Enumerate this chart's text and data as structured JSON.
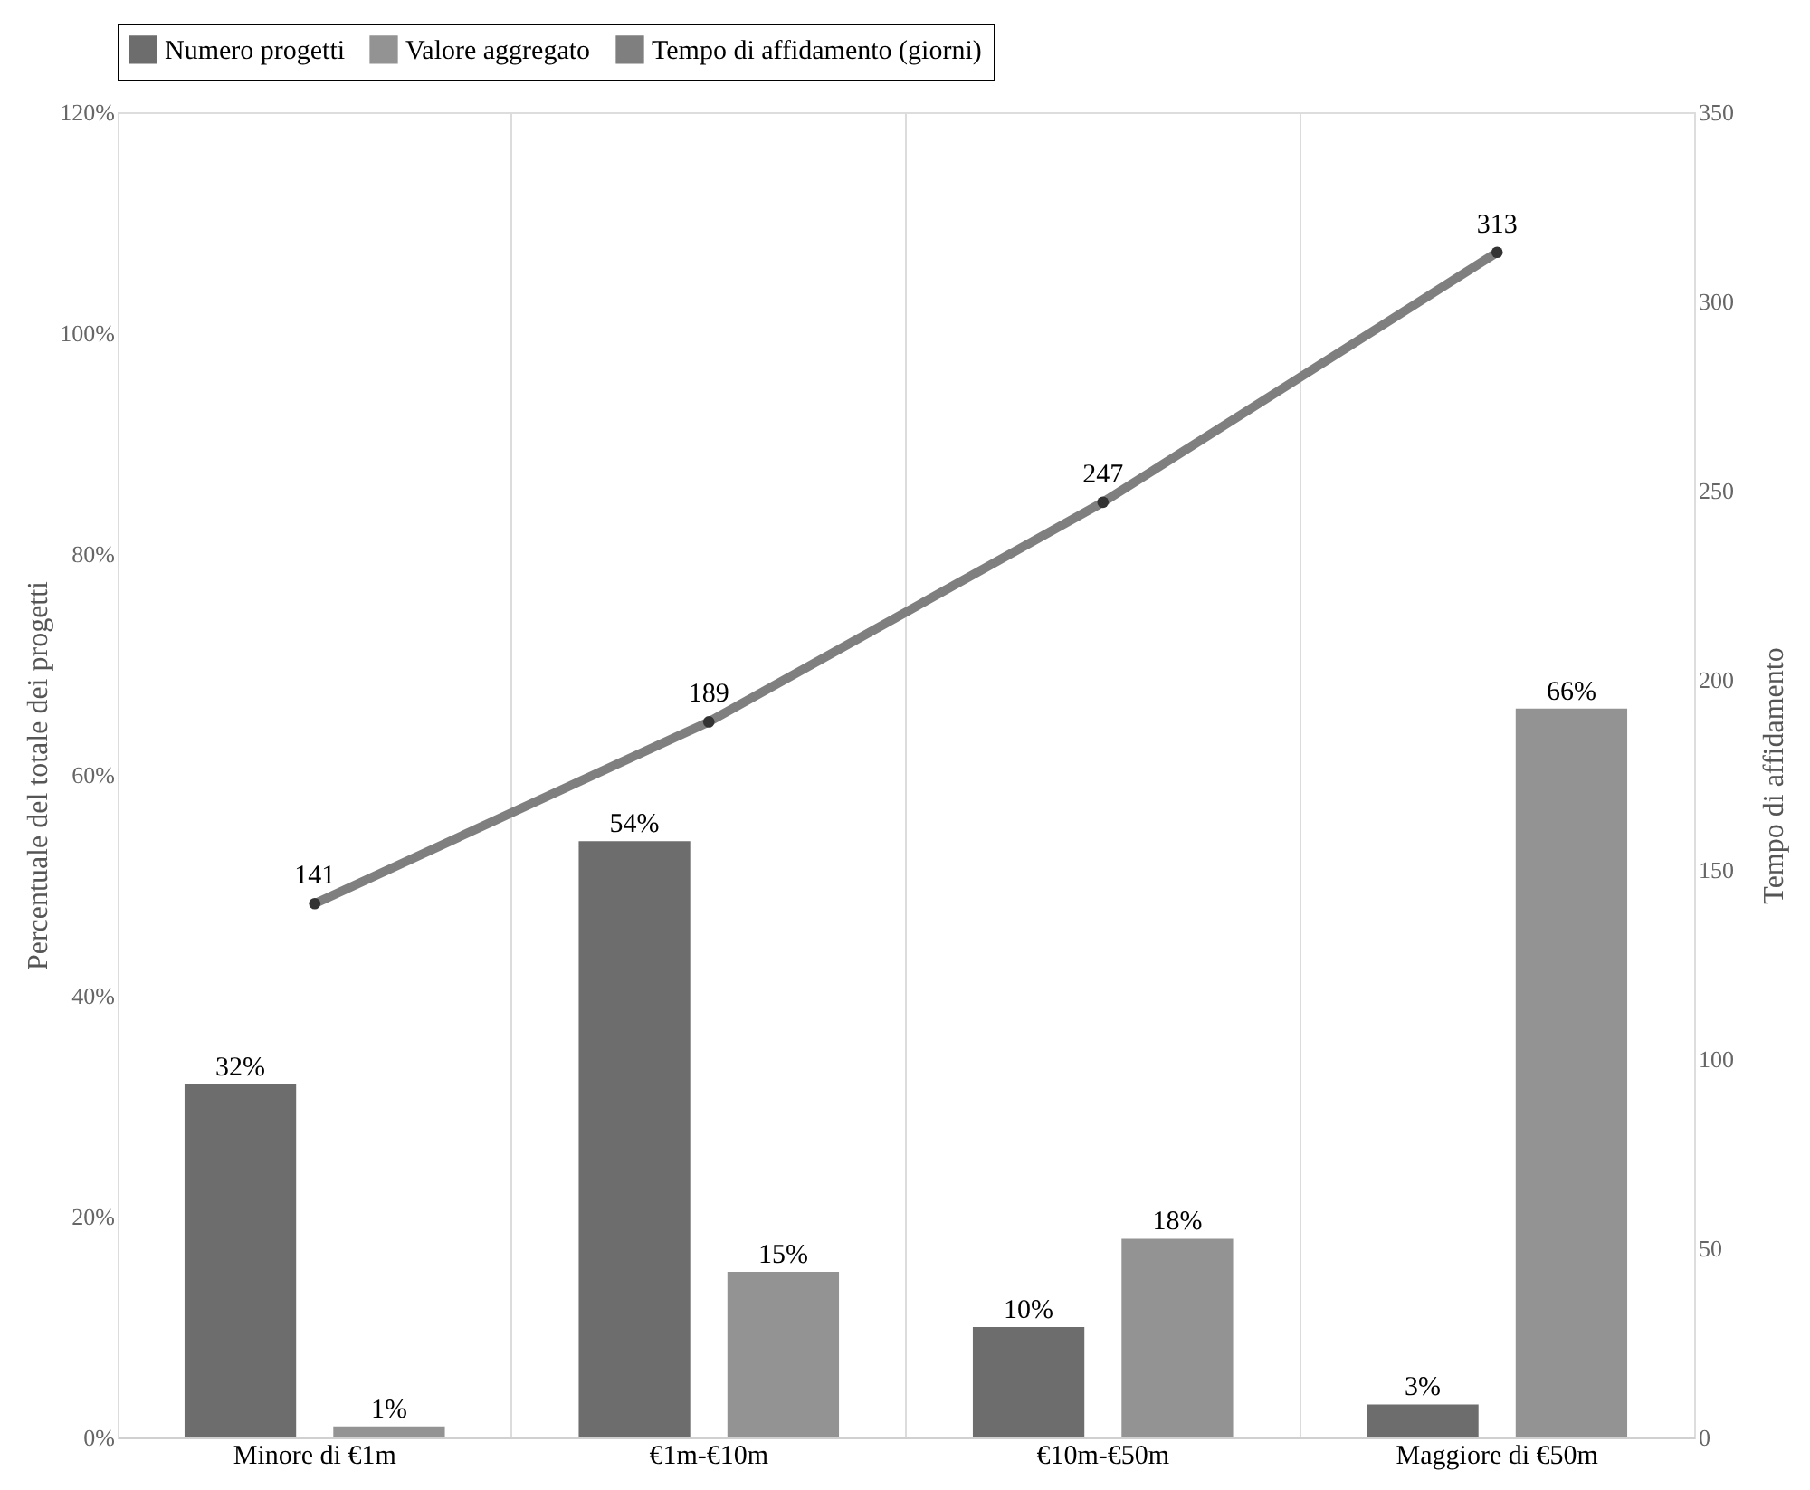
{
  "chart_data": {
    "type": "bar",
    "categories": [
      "Minore di €1m",
      "€1m-€10m",
      "€10m-€50m",
      "Maggiore di €50m"
    ],
    "ylabel": "Percentuale del totale dei progetti",
    "y2label": "Tempo di affidamento",
    "ylim": [
      0,
      120
    ],
    "yticks": [
      {
        "value": 0,
        "label": "0%"
      },
      {
        "value": 20,
        "label": "20%"
      },
      {
        "value": 40,
        "label": "40%"
      },
      {
        "value": 60,
        "label": "60%"
      },
      {
        "value": 80,
        "label": "80%"
      },
      {
        "value": 100,
        "label": "100%"
      },
      {
        "value": 120,
        "label": "120%"
      }
    ],
    "y2lim": [
      0,
      350
    ],
    "y2ticks": [
      0,
      50,
      100,
      150,
      200,
      250,
      300,
      350
    ],
    "series": [
      {
        "name": "Numero progetti",
        "color": "#6d6d6d",
        "values": [
          32,
          54,
          10,
          3
        ],
        "value_labels": [
          "32%",
          "54%",
          "10%",
          "3%"
        ]
      },
      {
        "name": "Valore aggregato",
        "color": "#939393",
        "values": [
          1,
          15,
          18,
          66
        ],
        "value_labels": [
          "1%",
          "15%",
          "18%",
          "66%"
        ]
      },
      {
        "name": "Tempo di affidamento (giorni)",
        "type": "line",
        "axis": "y2",
        "color": "#7f7f7f",
        "values": [
          141,
          189,
          247,
          313
        ],
        "value_labels": [
          "141",
          "189",
          "247",
          "313"
        ]
      }
    ],
    "marker": "circle",
    "line_style": "solid",
    "grid": "x",
    "legend": "top"
  }
}
